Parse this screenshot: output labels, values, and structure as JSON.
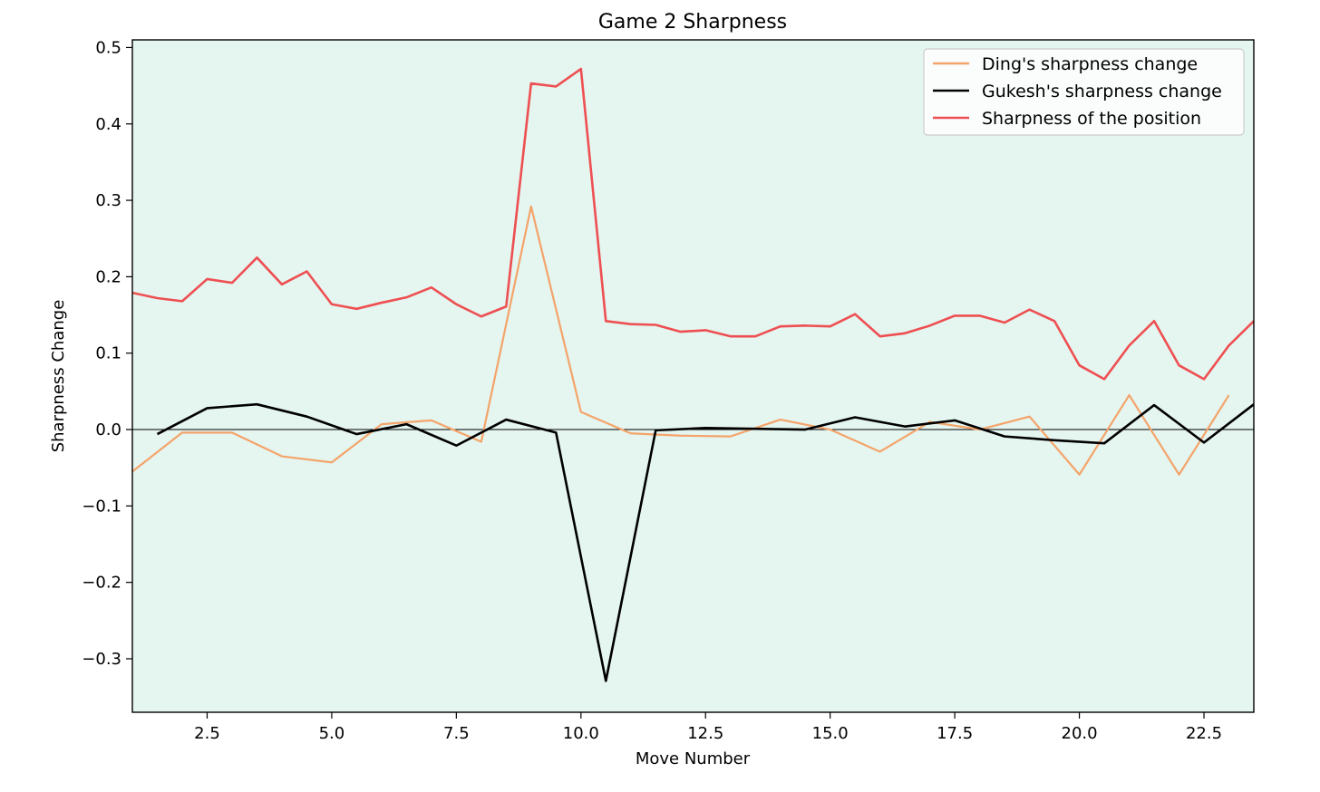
{
  "chart_data": {
    "type": "line",
    "title": "Game 2 Sharpness",
    "xlabel": "Move Number",
    "ylabel": "Sharpness Change",
    "xlim": [
      1,
      23.5
    ],
    "ylim": [
      -0.37,
      0.51
    ],
    "xticks": [
      2.5,
      5.0,
      7.5,
      10.0,
      12.5,
      15.0,
      17.5,
      20.0,
      22.5
    ],
    "xtick_labels": [
      "2.5",
      "5.0",
      "7.5",
      "10.0",
      "12.5",
      "15.0",
      "17.5",
      "20.0",
      "22.5"
    ],
    "yticks": [
      0.5,
      0.4,
      0.3,
      0.2,
      0.1,
      0.0,
      -0.1,
      -0.2,
      -0.3
    ],
    "ytick_labels": [
      "0.5",
      "0.4",
      "0.3",
      "0.2",
      "0.1",
      "0.0",
      "−0.1",
      "−0.2",
      "−0.3"
    ],
    "zero_line": true,
    "grid": false,
    "legend_position": "top-right",
    "background_color": "#e5f5ef",
    "series": [
      {
        "name": "Ding's sharpness change",
        "color": "#f4a46a",
        "x": [
          1,
          2,
          3,
          4,
          5,
          6,
          7,
          8,
          9,
          10,
          11,
          12,
          13,
          14,
          15,
          16,
          17,
          18,
          19,
          20,
          21,
          22,
          23
        ],
        "y": [
          -0.055,
          -0.004,
          -0.004,
          -0.035,
          -0.043,
          0.007,
          0.012,
          -0.016,
          0.292,
          0.023,
          -0.005,
          -0.008,
          -0.009,
          0.013,
          0.0,
          -0.029,
          0.01,
          0.0,
          0.017,
          -0.059,
          0.045,
          -0.059,
          0.045
        ]
      },
      {
        "name": "Gukesh's sharpness change",
        "color": "#000000",
        "x": [
          1.5,
          2.5,
          3.5,
          4.5,
          5.5,
          6.5,
          7.5,
          8.5,
          9.5,
          10.5,
          11.5,
          12.5,
          13.5,
          14.5,
          15.5,
          16.5,
          17.5,
          18.5,
          19.5,
          20.5,
          21.5,
          22.5,
          23.5
        ],
        "y": [
          -0.006,
          0.028,
          0.033,
          0.017,
          -0.006,
          0.007,
          -0.021,
          0.013,
          -0.004,
          -0.329,
          -0.001,
          0.002,
          0.001,
          0.0,
          0.016,
          0.004,
          0.012,
          -0.009,
          -0.014,
          -0.018,
          0.032,
          -0.017,
          0.033
        ]
      },
      {
        "name": "Sharpness of the position",
        "color": "#ee4f52",
        "x": [
          1,
          1.5,
          2,
          2.5,
          3,
          3.5,
          4,
          4.5,
          5,
          5.5,
          6,
          6.5,
          7,
          7.5,
          8,
          8.5,
          9,
          9.5,
          10,
          10.5,
          11,
          11.5,
          12,
          12.5,
          13,
          13.5,
          14,
          14.5,
          15,
          15.5,
          16,
          16.5,
          17,
          17.5,
          18,
          18.5,
          19,
          19.5,
          20,
          20.5,
          21,
          21.5,
          22,
          22.5,
          23,
          23.5
        ],
        "y": [
          0.179,
          0.172,
          0.168,
          0.197,
          0.192,
          0.225,
          0.19,
          0.207,
          0.164,
          0.158,
          0.166,
          0.173,
          0.186,
          0.164,
          0.148,
          0.161,
          0.453,
          0.449,
          0.472,
          0.142,
          0.138,
          0.137,
          0.128,
          0.13,
          0.122,
          0.122,
          0.135,
          0.136,
          0.135,
          0.151,
          0.122,
          0.126,
          0.136,
          0.149,
          0.149,
          0.14,
          0.157,
          0.142,
          0.084,
          0.066,
          0.11,
          0.142,
          0.084,
          0.066,
          0.11,
          0.142
        ]
      }
    ]
  }
}
